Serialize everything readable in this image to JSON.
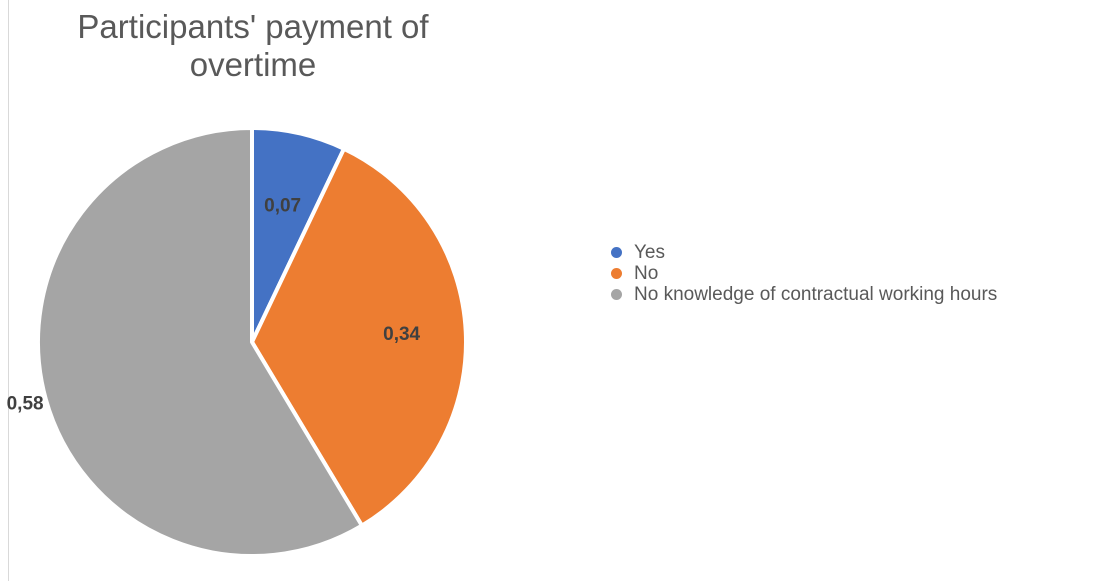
{
  "chart_data": {
    "type": "pie",
    "title": "Participants' payment of overtime",
    "categories": [
      "Yes",
      "No",
      "No knowledge of contractual working hours"
    ],
    "values": [
      0.07,
      0.34,
      0.58
    ],
    "data_labels": [
      "0,07",
      "0,34",
      "0,58"
    ],
    "colors": [
      "#4472C4",
      "#ED7D31",
      "#A5A5A5"
    ],
    "legend_position": "right"
  }
}
